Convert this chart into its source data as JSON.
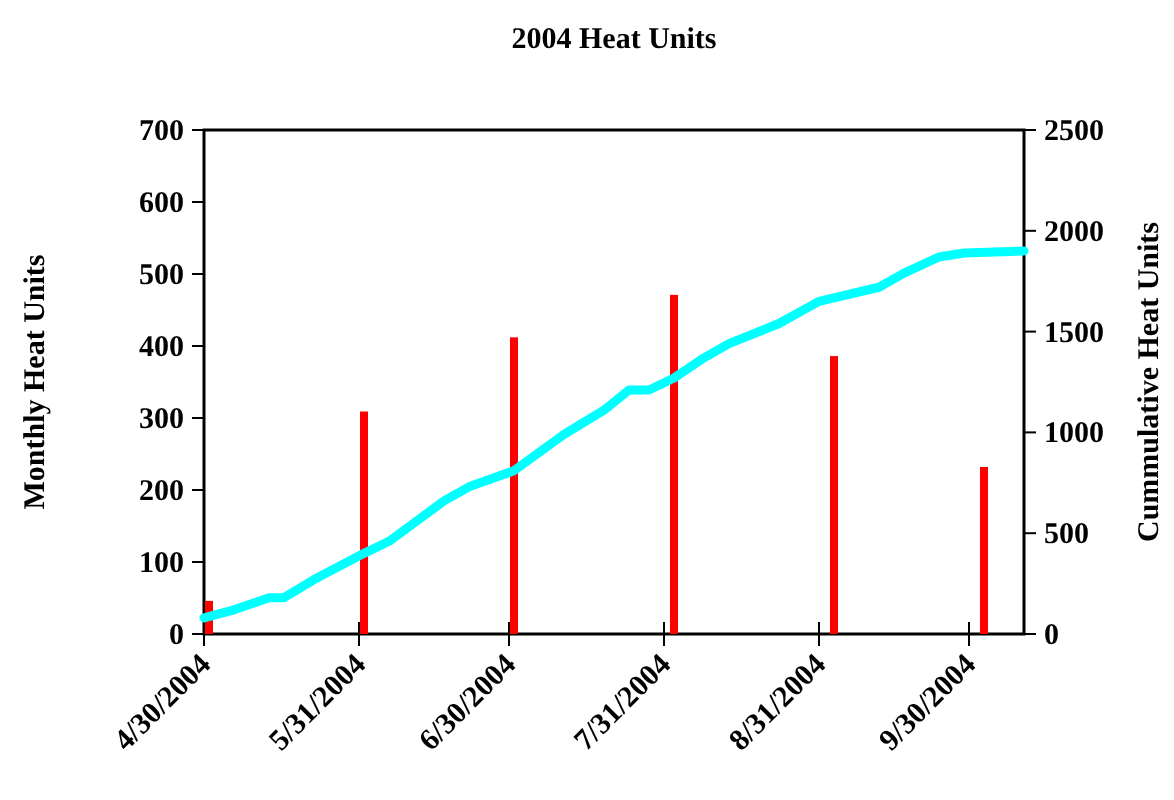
{
  "chart_data": {
    "type": "bar",
    "title": "2004 Heat Units",
    "ylabel": "Monthly Heat Units",
    "y2label": "Cummulative Heat Units",
    "xlim": [
      "2004-04-30",
      "2004-10-11"
    ],
    "xticks": [
      {
        "value": "2004-04-30",
        "label": "4/30/2004"
      },
      {
        "value": "2004-05-31",
        "label": "5/31/2004"
      },
      {
        "value": "2004-06-30",
        "label": "6/30/2004"
      },
      {
        "value": "2004-07-31",
        "label": "7/31/2004"
      },
      {
        "value": "2004-08-31",
        "label": "8/31/2004"
      },
      {
        "value": "2004-09-30",
        "label": "9/30/2004"
      }
    ],
    "ylim": [
      0,
      700
    ],
    "yticks": [
      0,
      100,
      200,
      300,
      400,
      500,
      600,
      700
    ],
    "y2lim": [
      0,
      2500
    ],
    "y2ticks": [
      0,
      500,
      1000,
      1500,
      2000,
      2500
    ],
    "grid": false,
    "series": [
      {
        "color": "#ff0000",
        "x": [
          "2004-05-01",
          "2004-06-01",
          "2004-07-01",
          "2004-08-02",
          "2004-09-03",
          "2004-10-03"
        ],
        "values": [
          46,
          309,
          412,
          471,
          386,
          232
        ]
      },
      {
        "type": "line",
        "axis": "y2",
        "color": "#00ffff",
        "marker": "none",
        "line_style": "solid",
        "x": [
          "2004-04-30",
          "2004-05-06",
          "2004-05-13",
          "2004-05-16",
          "2004-05-22",
          "2004-06-01",
          "2004-06-06",
          "2004-06-17",
          "2004-06-22",
          "2004-07-01",
          "2004-07-11",
          "2004-07-19",
          "2004-07-24",
          "2004-07-28",
          "2004-08-02",
          "2004-08-08",
          "2004-08-13",
          "2004-08-23",
          "2004-08-31",
          "2004-09-12",
          "2004-09-17",
          "2004-09-24",
          "2004-09-29",
          "2004-10-11"
        ],
        "values": [
          80,
          120,
          180,
          180,
          270,
          400,
          460,
          660,
          730,
          810,
          990,
          1110,
          1210,
          1210,
          1270,
          1370,
          1440,
          1540,
          1650,
          1720,
          1790,
          1870,
          1890,
          1900
        ]
      }
    ]
  }
}
